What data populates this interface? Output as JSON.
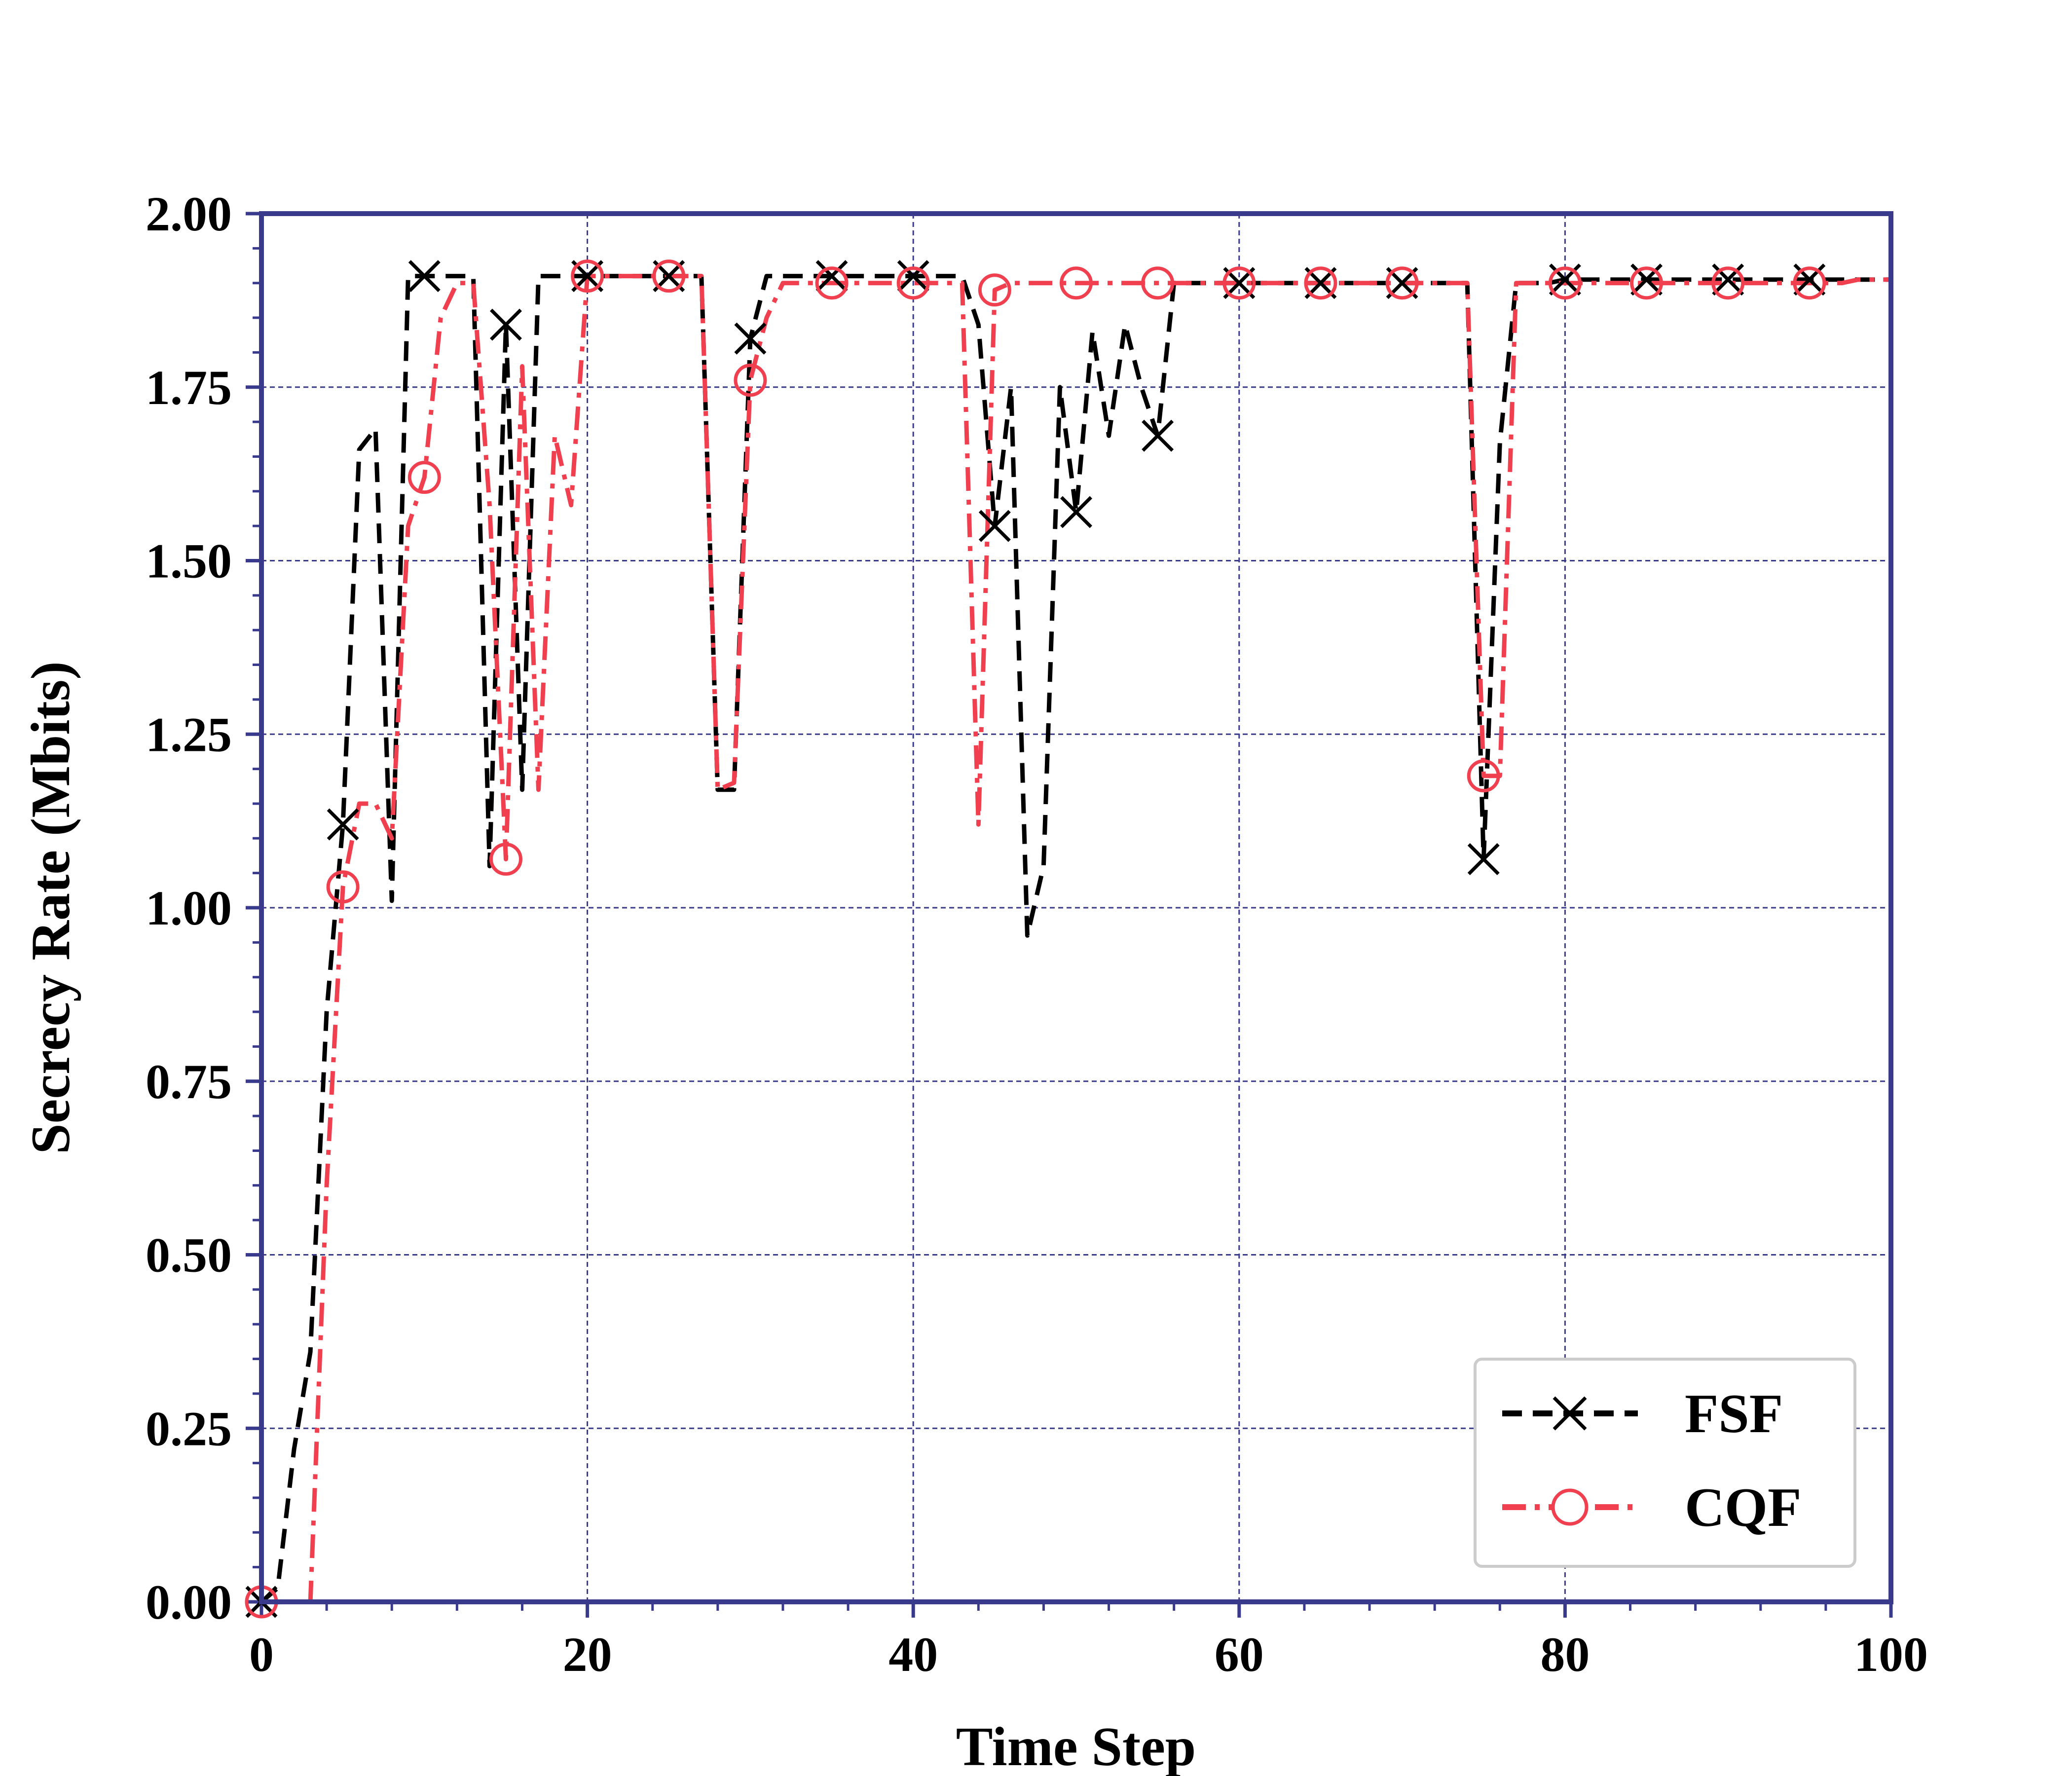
{
  "chart_data": {
    "type": "line",
    "title": "",
    "xlabel": "Time Step",
    "ylabel": "Secrecy Rate (Mbits)",
    "xlim": [
      0,
      100
    ],
    "ylim": [
      0,
      2.0
    ],
    "xticks": [
      "0",
      "20",
      "40",
      "60",
      "80",
      "100"
    ],
    "yticks": [
      "0.00",
      "0.25",
      "0.50",
      "0.75",
      "1.00",
      "1.25",
      "1.50",
      "1.75",
      "2.00"
    ],
    "grid": true,
    "legend_position": "bottom-right",
    "colors": {
      "axis": "#3a3a8c",
      "grid": "#3a3a8c",
      "FSF": "#000000",
      "CQF": "#f0404f"
    },
    "series": [
      {
        "name": "FSF",
        "line_style": "dashed",
        "marker": "x",
        "x": [
          0,
          1,
          2,
          3,
          4,
          5,
          6,
          7,
          8,
          9,
          10,
          11,
          12,
          13,
          14,
          15,
          16,
          17,
          18,
          19,
          20,
          21,
          22,
          23,
          24,
          25,
          26,
          27,
          28,
          29,
          30,
          31,
          32,
          33,
          34,
          35,
          36,
          37,
          38,
          39,
          40,
          41,
          42,
          43,
          44,
          45,
          46,
          47,
          48,
          49,
          50,
          51,
          52,
          53,
          54,
          55,
          56,
          57,
          58,
          59,
          60,
          61,
          62,
          63,
          64,
          65,
          66,
          67,
          68,
          69,
          70,
          71,
          72,
          73,
          74,
          75,
          76,
          77,
          78,
          79,
          80,
          81,
          82,
          83,
          84,
          85,
          86,
          87,
          88,
          89,
          90,
          91,
          92,
          93,
          94,
          95,
          96,
          97,
          98,
          99,
          100
        ],
        "y": [
          0.0,
          0.02,
          0.22,
          0.36,
          0.85,
          1.12,
          1.66,
          1.69,
          1.01,
          1.91,
          1.91,
          1.91,
          1.91,
          1.91,
          1.06,
          1.84,
          1.17,
          1.91,
          1.91,
          1.91,
          1.91,
          1.91,
          1.91,
          1.91,
          1.91,
          1.91,
          1.91,
          1.91,
          1.17,
          1.17,
          1.82,
          1.91,
          1.91,
          1.91,
          1.91,
          1.91,
          1.91,
          1.91,
          1.91,
          1.91,
          1.91,
          1.91,
          1.91,
          1.91,
          1.84,
          1.55,
          1.75,
          0.96,
          1.06,
          1.75,
          1.57,
          1.83,
          1.68,
          1.84,
          1.75,
          1.68,
          1.9,
          1.9,
          1.9,
          1.9,
          1.9,
          1.9,
          1.9,
          1.9,
          1.9,
          1.9,
          1.9,
          1.9,
          1.9,
          1.9,
          1.9,
          1.9,
          1.9,
          1.9,
          1.9,
          1.07,
          1.67,
          1.9,
          1.9,
          1.9,
          1.905,
          1.905,
          1.905,
          1.905,
          1.905,
          1.905,
          1.905,
          1.905,
          1.905,
          1.905,
          1.905,
          1.905,
          1.905,
          1.905,
          1.905,
          1.905,
          1.905,
          1.905,
          1.905,
          1.905,
          1.905
        ],
        "marker_x": [
          0,
          5,
          10,
          15,
          20,
          25,
          30,
          35,
          40,
          45,
          50,
          55,
          60,
          65,
          70,
          75,
          80,
          85,
          90,
          95
        ]
      },
      {
        "name": "CQF",
        "line_style": "dashdot",
        "marker": "circle",
        "x": [
          0,
          1,
          2,
          3,
          4,
          5,
          6,
          7,
          8,
          9,
          10,
          11,
          12,
          13,
          14,
          15,
          16,
          17,
          18,
          19,
          20,
          21,
          22,
          23,
          24,
          25,
          26,
          27,
          28,
          29,
          30,
          31,
          32,
          33,
          34,
          35,
          36,
          37,
          38,
          39,
          40,
          41,
          42,
          43,
          44,
          45,
          46,
          47,
          48,
          49,
          50,
          51,
          52,
          53,
          54,
          55,
          56,
          57,
          58,
          59,
          60,
          61,
          62,
          63,
          64,
          65,
          66,
          67,
          68,
          69,
          70,
          71,
          72,
          73,
          74,
          75,
          76,
          77,
          78,
          79,
          80,
          81,
          82,
          83,
          84,
          85,
          86,
          87,
          88,
          89,
          90,
          91,
          92,
          93,
          94,
          95,
          96,
          97,
          98,
          99,
          100
        ],
        "y": [
          0.0,
          0.0,
          0.0,
          0.0,
          0.6,
          1.03,
          1.15,
          1.15,
          1.1,
          1.55,
          1.62,
          1.85,
          1.9,
          1.9,
          1.58,
          1.07,
          1.78,
          1.17,
          1.68,
          1.58,
          1.91,
          1.91,
          1.91,
          1.91,
          1.91,
          1.91,
          1.91,
          1.91,
          1.17,
          1.18,
          1.76,
          1.85,
          1.9,
          1.9,
          1.9,
          1.9,
          1.9,
          1.9,
          1.9,
          1.9,
          1.9,
          1.9,
          1.9,
          1.9,
          1.12,
          1.89,
          1.9,
          1.9,
          1.9,
          1.9,
          1.9,
          1.9,
          1.9,
          1.9,
          1.9,
          1.9,
          1.9,
          1.9,
          1.9,
          1.9,
          1.9,
          1.9,
          1.9,
          1.9,
          1.9,
          1.9,
          1.9,
          1.9,
          1.9,
          1.9,
          1.9,
          1.9,
          1.9,
          1.9,
          1.9,
          1.19,
          1.19,
          1.9,
          1.9,
          1.9,
          1.9,
          1.9,
          1.9,
          1.9,
          1.9,
          1.9,
          1.9,
          1.9,
          1.9,
          1.9,
          1.9,
          1.9,
          1.9,
          1.9,
          1.9,
          1.9,
          1.9,
          1.9,
          1.905,
          1.905,
          1.905
        ],
        "marker_x": [
          0,
          5,
          10,
          15,
          20,
          25,
          30,
          35,
          40,
          45,
          50,
          55,
          60,
          65,
          70,
          75,
          80,
          85,
          90,
          95
        ]
      }
    ]
  }
}
